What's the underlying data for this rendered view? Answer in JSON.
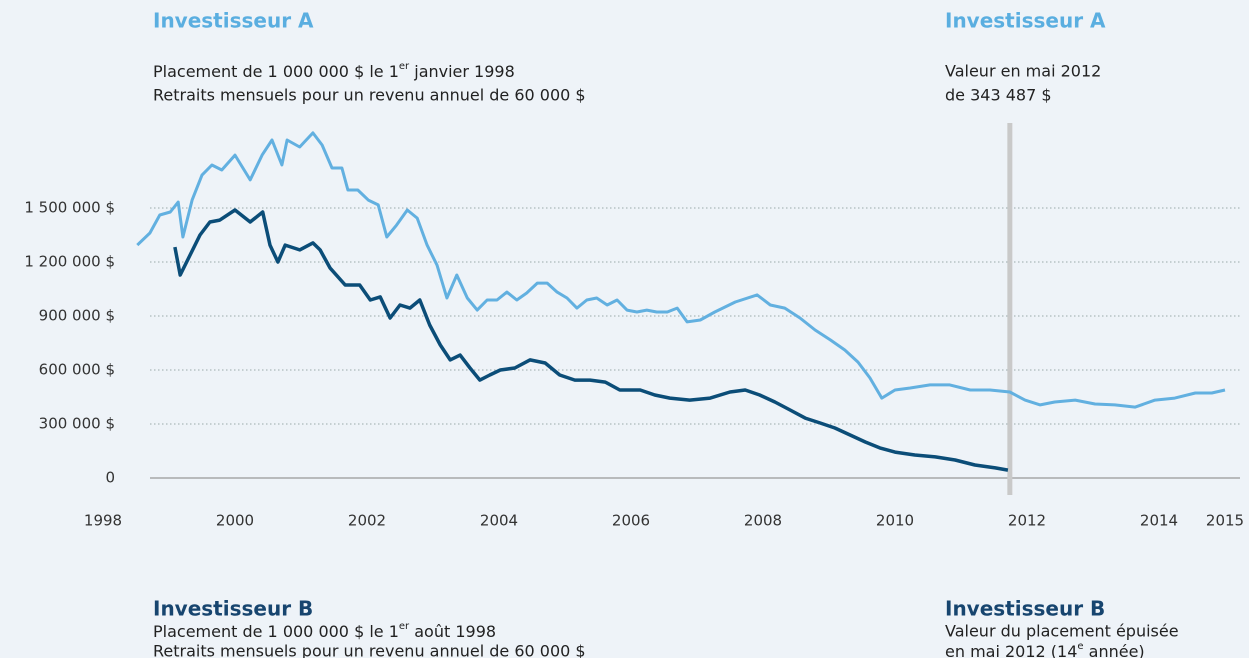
{
  "chart_data": {
    "type": "line",
    "annotations": [
      {
        "title": "Investisseur A",
        "color": "#5aaee0",
        "lines": [
          [
            "Placement de 1 000 000 $ le 1",
            "er",
            " janvier 1998"
          ],
          "Retraits mensuels pour un revenu annuel de 60 000 $"
        ]
      },
      {
        "title": "Investisseur A",
        "color": "#5aaee0",
        "lines": [
          "Valeur en mai 2012",
          "de 343 487 $"
        ]
      },
      {
        "title": "Investisseur B",
        "color": "#17456f",
        "lines": [
          [
            "Placement de 1 000 000 $ le 1",
            "er",
            " août 1998"
          ],
          "Retraits mensuels pour un revenu annuel de 60 000 $"
        ]
      },
      {
        "title": "Investisseur B",
        "color": "#17456f",
        "lines": [
          "Valeur du placement épuisée",
          [
            "en mai 2012 (14",
            "e",
            " année)"
          ]
        ]
      }
    ],
    "xlim": [
      1998,
      2015
    ],
    "xticks": [
      1998,
      2000,
      2002,
      2004,
      2006,
      2008,
      2010,
      2012,
      2014,
      2015
    ],
    "ylim": [
      0,
      2000000
    ],
    "yticks": [
      0,
      {
        "value": 300000,
        "label": "300 000 $"
      },
      {
        "value": 600000,
        "label": "600 000 $"
      },
      {
        "value": 900000,
        "label": "900 000 $"
      },
      {
        "value": 1200000,
        "label": "1 200 000 $"
      },
      {
        "value": 1500000,
        "label": "1 500 000 $"
      }
    ],
    "grid": true,
    "vline": {
      "x": 2011.74,
      "color": "#c9c9c9"
    },
    "series": [
      {
        "name": "Investisseur A",
        "color": "#62b0e0",
        "x": [
          1998.52,
          1998.71,
          1998.86,
          1999.02,
          1999.14,
          1999.21,
          1999.35,
          1999.5,
          1999.65,
          1999.8,
          2000.0,
          2000.23,
          2000.41,
          2000.56,
          2000.71,
          2000.79,
          2000.98,
          2001.18,
          2001.32,
          2001.47,
          2001.62,
          2001.71,
          2001.86,
          2002.02,
          2002.17,
          2002.3,
          2002.45,
          2002.61,
          2002.76,
          2002.91,
          2003.06,
          2003.21,
          2003.36,
          2003.52,
          2003.67,
          2003.82,
          2003.97,
          2004.12,
          2004.27,
          2004.42,
          2004.58,
          2004.73,
          2004.88,
          2005.03,
          2005.18,
          2005.33,
          2005.48,
          2005.64,
          2005.79,
          2005.94,
          2006.09,
          2006.24,
          2006.39,
          2006.55,
          2006.7,
          2006.85,
          2007.05,
          2007.27,
          2007.58,
          2007.91,
          2008.11,
          2008.33,
          2008.56,
          2008.79,
          2009.02,
          2009.24,
          2009.44,
          2009.62,
          2009.8,
          2010.0,
          2010.23,
          2010.53,
          2010.83,
          2011.14,
          2011.44,
          2011.74,
          2011.97,
          2012.2,
          2012.42,
          2012.73,
          2013.03,
          2013.33,
          2013.64,
          2013.94,
          2014.24,
          2014.55,
          2014.8,
          2015.0
        ],
        "values": [
          1294000,
          1361000,
          1461000,
          1478000,
          1533000,
          1339000,
          1544000,
          1683000,
          1739000,
          1711000,
          1794000,
          1656000,
          1794000,
          1878000,
          1739000,
          1878000,
          1839000,
          1917000,
          1850000,
          1722000,
          1722000,
          1600000,
          1600000,
          1544000,
          1517000,
          1339000,
          1406000,
          1489000,
          1444000,
          1294000,
          1183000,
          1000000,
          1128000,
          1000000,
          933000,
          989000,
          989000,
          1033000,
          989000,
          1028000,
          1083000,
          1083000,
          1033000,
          1000000,
          944000,
          989000,
          1000000,
          961000,
          989000,
          933000,
          922000,
          933000,
          922000,
          922000,
          944000,
          867000,
          878000,
          922000,
          978000,
          1017000,
          961000,
          944000,
          889000,
          822000,
          767000,
          711000,
          644000,
          556000,
          444000,
          489000,
          500000,
          517000,
          517000,
          489000,
          489000,
          478000,
          433000,
          406000,
          422000,
          433000,
          411000,
          406000,
          394000,
          433000,
          444000,
          472000,
          472000,
          489000
        ]
      },
      {
        "name": "Investisseur B",
        "color": "#0b4d78",
        "x": [
          1999.09,
          1999.17,
          1999.32,
          1999.47,
          1999.62,
          1999.77,
          2000.0,
          2000.23,
          2000.42,
          2000.53,
          2000.65,
          2000.76,
          2000.98,
          2001.18,
          2001.29,
          2001.44,
          2001.67,
          2001.89,
          2002.05,
          2002.2,
          2002.35,
          2002.5,
          2002.65,
          2002.8,
          2002.95,
          2003.11,
          2003.26,
          2003.41,
          2003.56,
          2003.71,
          2003.86,
          2004.02,
          2004.24,
          2004.47,
          2004.7,
          2004.92,
          2005.15,
          2005.38,
          2005.61,
          2005.83,
          2006.14,
          2006.36,
          2006.59,
          2006.89,
          2007.2,
          2007.5,
          2007.73,
          2007.95,
          2008.18,
          2008.41,
          2008.64,
          2008.86,
          2009.09,
          2009.32,
          2009.55,
          2009.77,
          2010.0,
          2010.3,
          2010.61,
          2010.91,
          2011.21,
          2011.52,
          2011.71
        ],
        "values": [
          1283000,
          1128000,
          1239000,
          1350000,
          1422000,
          1433000,
          1489000,
          1422000,
          1478000,
          1294000,
          1200000,
          1294000,
          1267000,
          1306000,
          1267000,
          1167000,
          1072000,
          1072000,
          989000,
          1006000,
          889000,
          961000,
          944000,
          989000,
          850000,
          739000,
          656000,
          683000,
          611000,
          544000,
          572000,
          600000,
          611000,
          656000,
          639000,
          572000,
          544000,
          544000,
          533000,
          489000,
          489000,
          461000,
          444000,
          433000,
          444000,
          478000,
          489000,
          461000,
          422000,
          378000,
          333000,
          306000,
          278000,
          239000,
          200000,
          167000,
          144000,
          128000,
          117000,
          100000,
          72000,
          56000,
          44000
        ]
      }
    ]
  }
}
